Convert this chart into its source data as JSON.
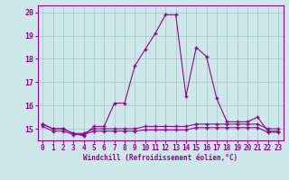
{
  "x": [
    0,
    1,
    2,
    3,
    4,
    5,
    6,
    7,
    8,
    9,
    10,
    11,
    12,
    13,
    14,
    15,
    16,
    17,
    18,
    19,
    20,
    21,
    22,
    23
  ],
  "y_main": [
    15.2,
    15.0,
    15.0,
    14.8,
    14.7,
    15.1,
    15.1,
    16.1,
    16.1,
    17.7,
    18.4,
    19.1,
    19.9,
    19.9,
    16.4,
    18.5,
    18.1,
    16.3,
    15.3,
    15.3,
    15.3,
    15.5,
    14.9,
    14.9
  ],
  "y_flat1": [
    15.2,
    15.0,
    15.0,
    14.8,
    14.8,
    15.0,
    15.0,
    15.0,
    15.0,
    15.0,
    15.1,
    15.1,
    15.1,
    15.1,
    15.1,
    15.2,
    15.2,
    15.2,
    15.2,
    15.2,
    15.2,
    15.2,
    15.0,
    15.0
  ],
  "y_flat2": [
    15.1,
    14.9,
    14.9,
    14.75,
    14.75,
    14.9,
    14.9,
    14.9,
    14.9,
    14.9,
    14.95,
    14.95,
    14.95,
    14.95,
    14.95,
    15.05,
    15.05,
    15.05,
    15.05,
    15.05,
    15.05,
    15.05,
    14.85,
    14.85
  ],
  "line_color": "#990099",
  "bg_color": "#cce8e8",
  "grid_color": "#aacccc",
  "xlabel": "Windchill (Refroidissement éolien,°C)",
  "ylim": [
    14.5,
    20.3
  ],
  "xlim": [
    -0.5,
    23.5
  ],
  "yticks": [
    15,
    16,
    17,
    18,
    19,
    20
  ],
  "xticks": [
    0,
    1,
    2,
    3,
    4,
    5,
    6,
    7,
    8,
    9,
    10,
    11,
    12,
    13,
    14,
    15,
    16,
    17,
    18,
    19,
    20,
    21,
    22,
    23
  ]
}
